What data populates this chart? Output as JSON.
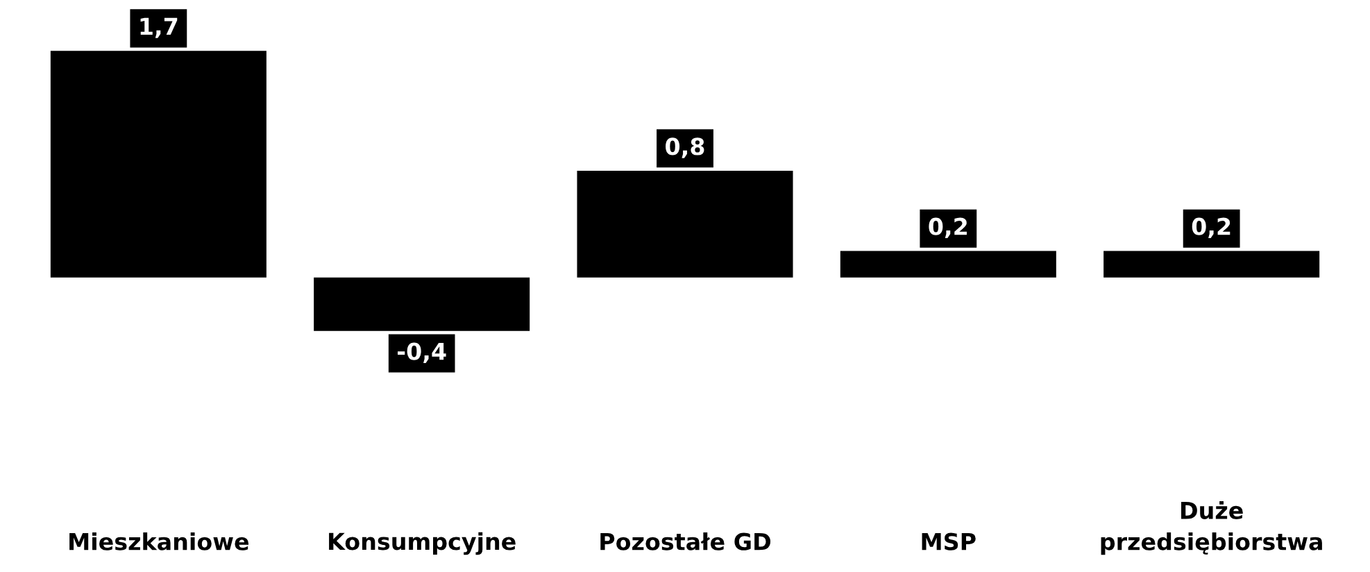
{
  "chart_data": {
    "type": "bar",
    "categories": [
      "Mieszkaniowe",
      "Konsumpcyjne",
      "Pozostałe GD",
      "MSP",
      "Duże\nprzedsiębiorstwa"
    ],
    "values": [
      1.7,
      -0.4,
      0.8,
      0.2,
      0.2
    ],
    "value_labels": [
      "1,7",
      "-0,4",
      "0,8",
      "0,2",
      "0,2"
    ],
    "color": "#000000"
  }
}
